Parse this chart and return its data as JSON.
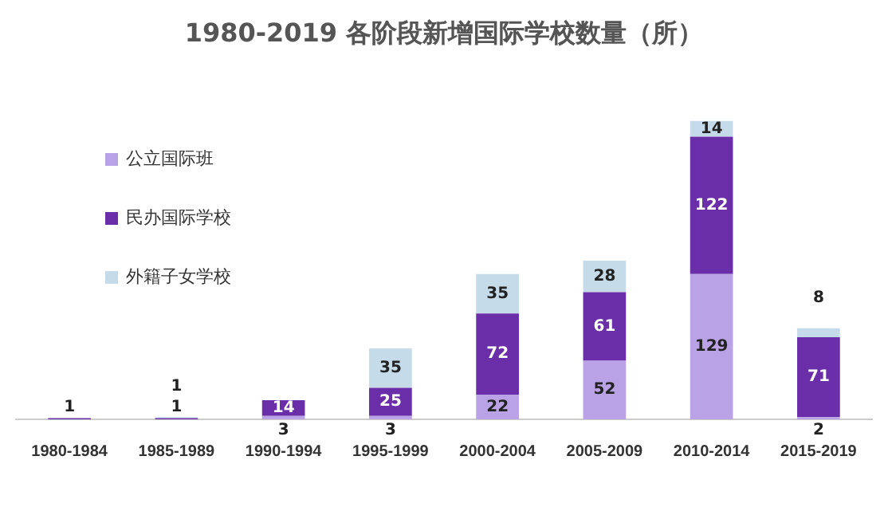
{
  "chart_data": {
    "type": "bar",
    "title": "1980-2019 各阶段新增国际学校数量（所）",
    "categories": [
      "1980-1984",
      "1985-1989",
      "1990-1994",
      "1995-1999",
      "2000-2004",
      "2005-2009",
      "2010-2014",
      "2015-2019"
    ],
    "stacked": true,
    "data_labels": true,
    "legend": "top left",
    "grid": false,
    "series": [
      {
        "name": "公立国际班",
        "color": "#b9a2e6",
        "values": [
          null,
          null,
          3,
          3,
          22,
          52,
          129,
          2
        ]
      },
      {
        "name": "民办国际学校",
        "color": "#6a2fa8",
        "values": [
          1,
          1,
          14,
          25,
          72,
          61,
          122,
          71
        ]
      },
      {
        "name": "外籍子女学校",
        "color": "#c6dbe9",
        "values": [
          null,
          1,
          null,
          35,
          35,
          28,
          14,
          8
        ]
      }
    ]
  }
}
